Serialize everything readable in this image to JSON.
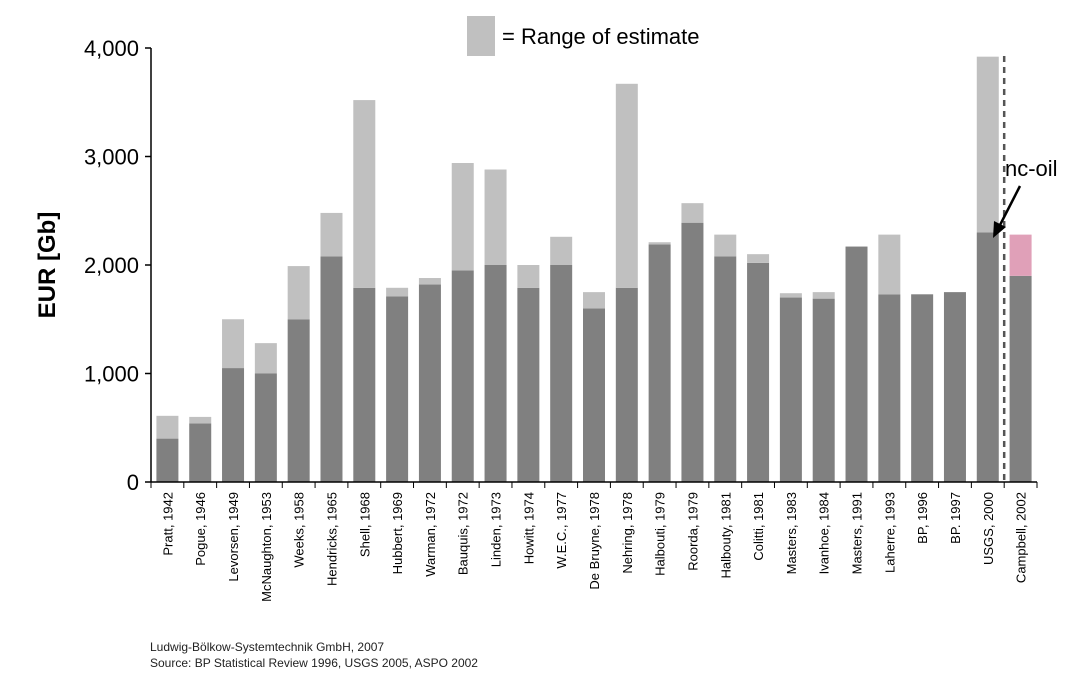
{
  "chart_data": {
    "type": "bar",
    "title": "",
    "xlabel": "",
    "ylabel": "EUR [Gb]",
    "ylim": [
      0,
      4000
    ],
    "yticks": [
      "0",
      "1,000",
      "2,000",
      "3,000",
      "4,000"
    ],
    "ytick_values": [
      0,
      1000,
      2000,
      3000,
      4000
    ],
    "stacked": true,
    "grid": false,
    "legend": {
      "placement": "top-center",
      "entries": [
        "= Range of estimate"
      ]
    },
    "categories": [
      "Pratt, 1942",
      "Pogue, 1946",
      "Levorsen, 1949",
      "McNaughton, 1953",
      "Weeks, 1958",
      "Hendricks, 1965",
      "Shell, 1968",
      "Hubbert, 1969",
      "Warman, 1972",
      "Bauquis, 1972",
      "Linden, 1973",
      "Howitt, 1974",
      "W.E.C., 1977",
      "De Bruyne, 1978",
      "Nehring, 1978",
      "Halbouti, 1979",
      "Roorda, 1979",
      "Halbouty, 1981",
      "Colitti, 1981",
      "Masters, 1983",
      "Ivanhoe, 1984",
      "Masters, 1991",
      "Laherre, 1993",
      "BP, 1996",
      "BP. 1997",
      "USGS, 2000",
      "Campbell, 2002"
    ],
    "series": [
      {
        "name": "",
        "color": "#808080",
        "values": [
          400,
          540,
          1050,
          1000,
          1500,
          2080,
          1790,
          1710,
          1820,
          1950,
          2000,
          1790,
          2000,
          1600,
          1790,
          2190,
          2390,
          2080,
          2020,
          1700,
          1690,
          2170,
          1730,
          1730,
          1750,
          2300,
          1900
        ]
      },
      {
        "name": "Range of estimate",
        "color": "#c0c0c0",
        "values": [
          210,
          60,
          450,
          280,
          490,
          400,
          1730,
          80,
          60,
          990,
          880,
          210,
          260,
          150,
          1880,
          20,
          180,
          200,
          80,
          40,
          60,
          0,
          550,
          0,
          0,
          1620,
          0
        ]
      },
      {
        "name": "",
        "color": "#e0a0b8",
        "values": [
          0,
          0,
          0,
          0,
          0,
          0,
          0,
          0,
          0,
          0,
          0,
          0,
          0,
          0,
          0,
          0,
          0,
          0,
          0,
          0,
          0,
          0,
          0,
          0,
          0,
          0,
          380
        ]
      }
    ],
    "annotations": [
      {
        "text": "nc-oil",
        "target_category": "Campbell, 2002"
      }
    ],
    "separator_before_category": "Campbell, 2002"
  },
  "footer": {
    "line1": "Ludwig-Bölkow-Systemtechnik GmbH, 2007",
    "line2": "Source: BP Statistical Review 1996, USGS 2005, ASPO 2002"
  }
}
